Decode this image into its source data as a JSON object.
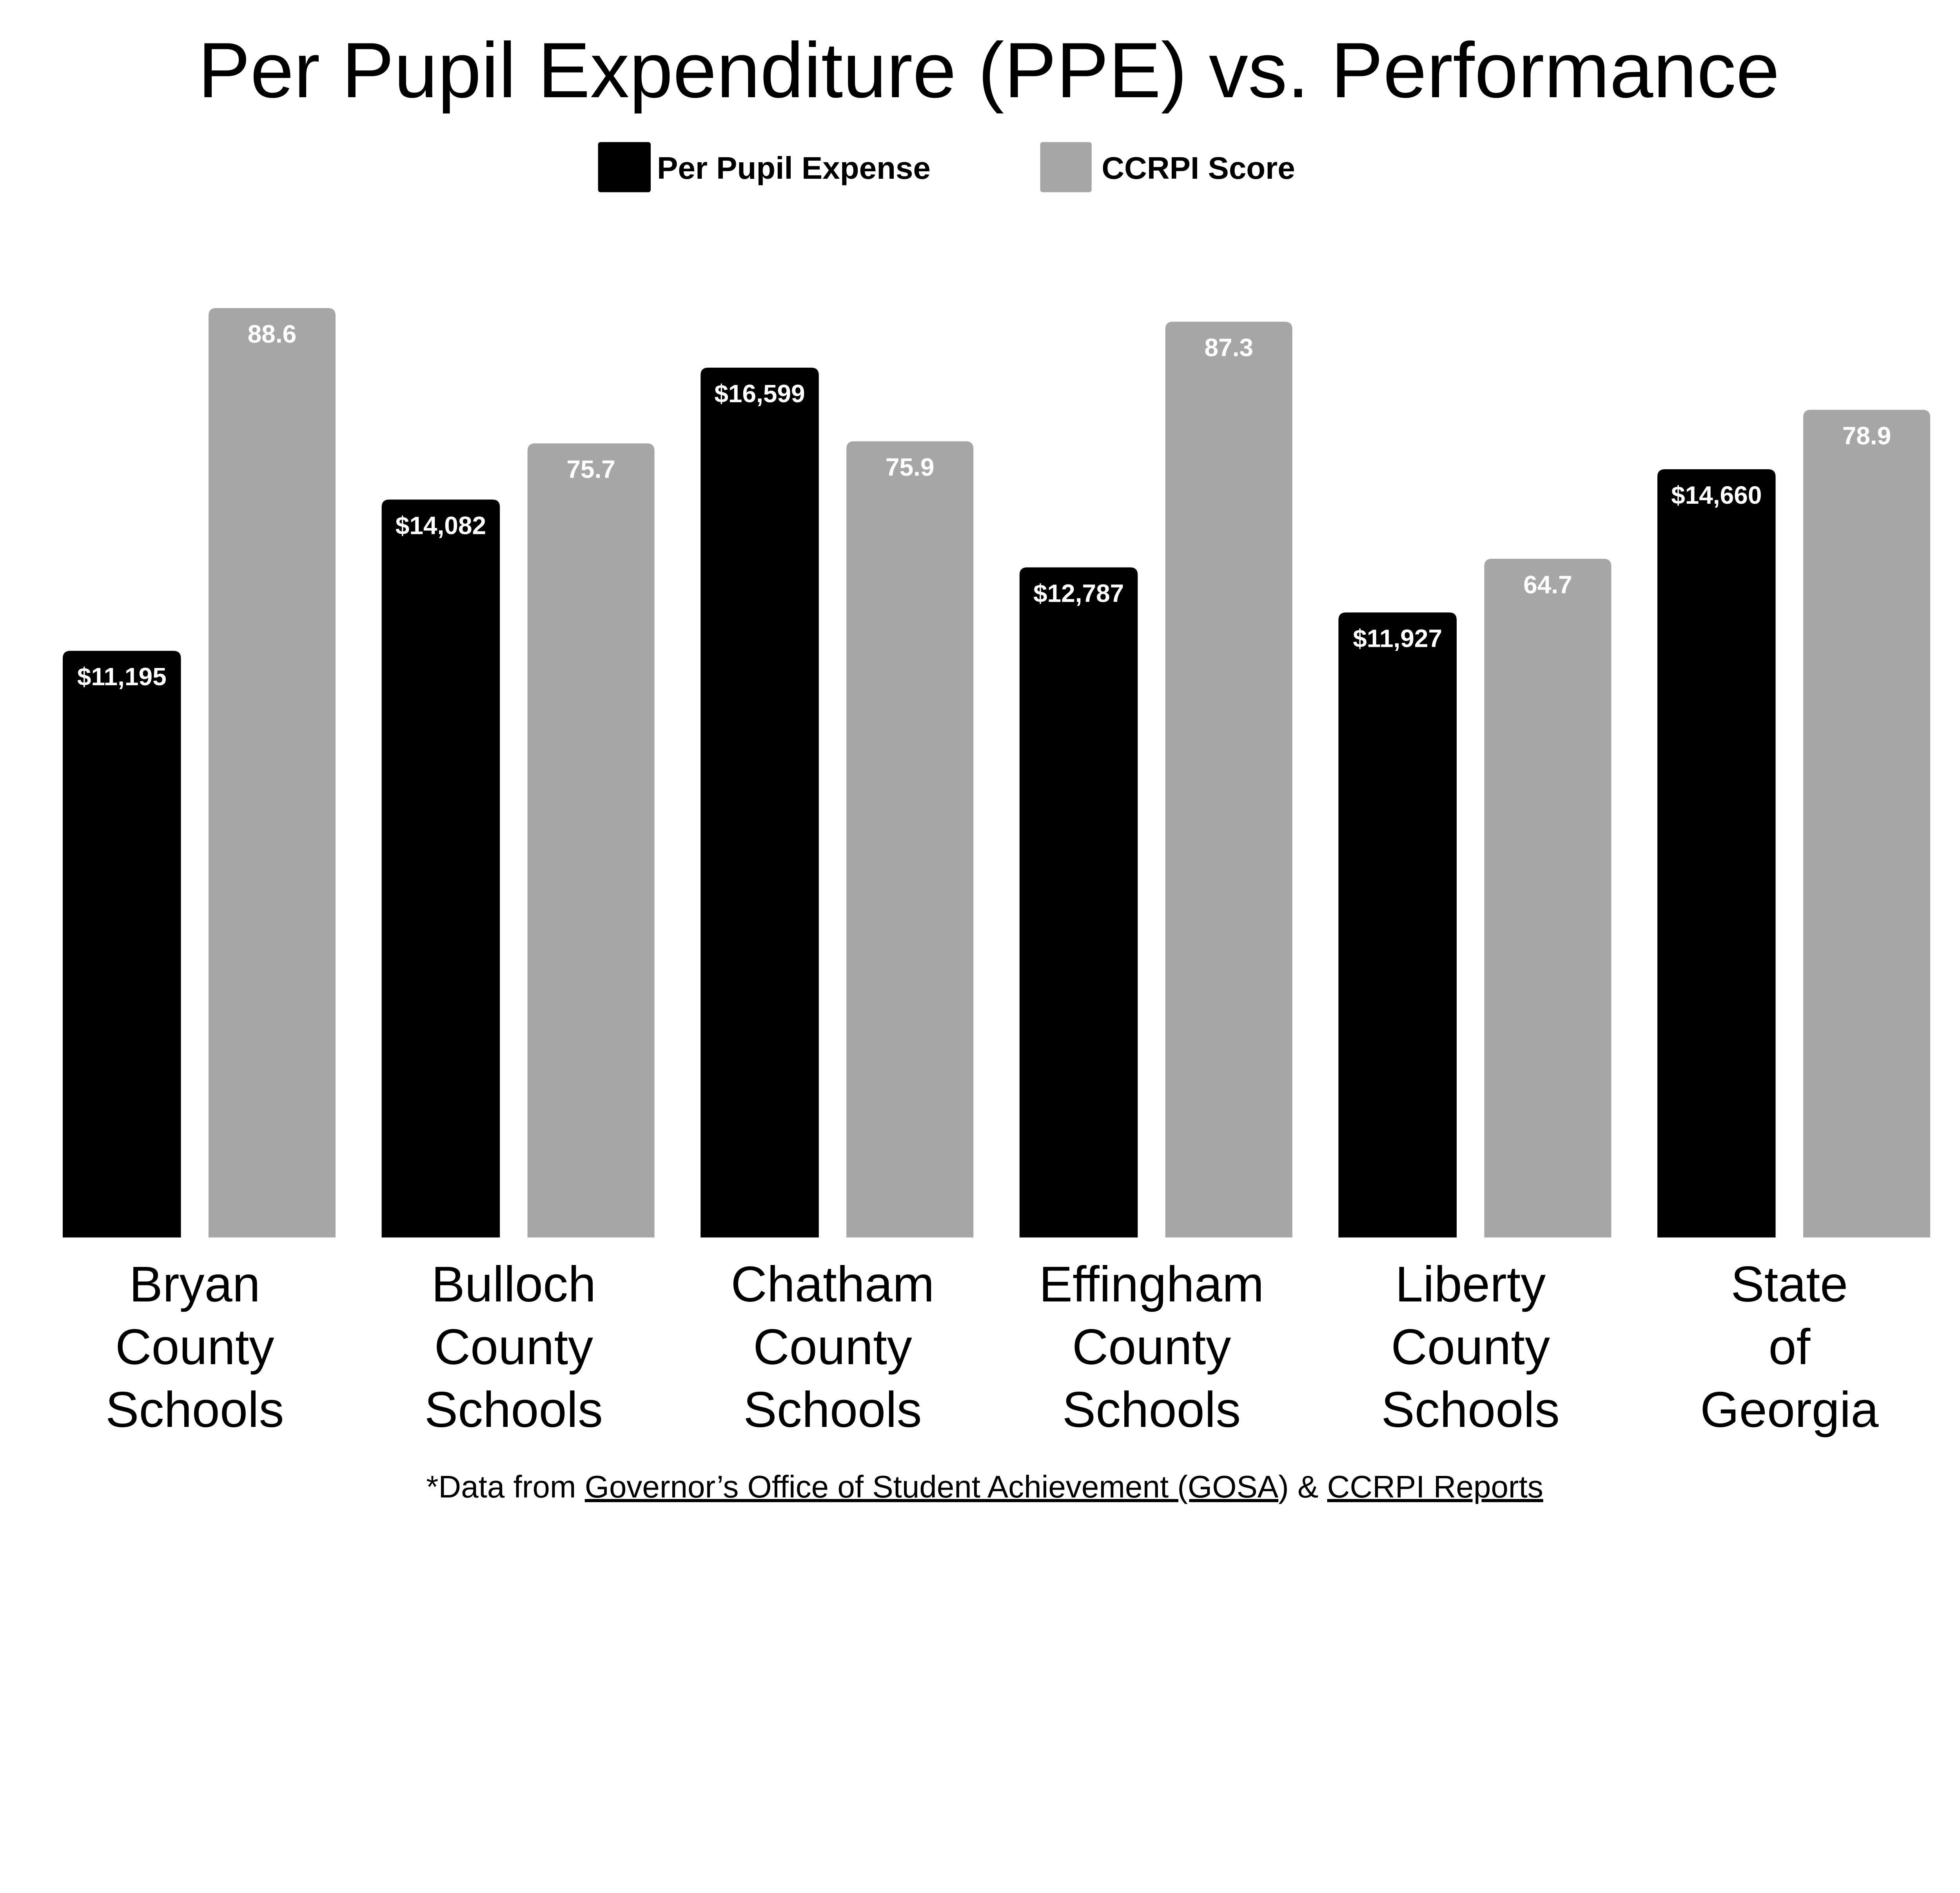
{
  "chart_data": {
    "type": "bar",
    "title": "Per Pupil Expenditure (PPE) vs. Performance",
    "categories": [
      [
        "Bryan",
        "County",
        "Schools"
      ],
      [
        "Bulloch",
        "County",
        "Schools"
      ],
      [
        "Chatham",
        "County",
        "Schools"
      ],
      [
        "Effingham",
        "County",
        "Schools"
      ],
      [
        "Liberty",
        "County",
        "Schools"
      ],
      [
        "State",
        "of",
        "Georgia"
      ]
    ],
    "series": [
      {
        "name": "Per Pupil Expense",
        "color": "#000000",
        "values": [
          11195,
          14082,
          16599,
          12787,
          11927,
          14660
        ],
        "labels": [
          "$11,195",
          "$14,082",
          "$16,599",
          "$12,787",
          "$11,927",
          "$14,660"
        ]
      },
      {
        "name": "CCRPI Score",
        "color": "#a6a6a6",
        "values": [
          88.6,
          75.7,
          75.9,
          87.3,
          64.7,
          78.9
        ],
        "labels": [
          "88.6",
          "75.7",
          "75.9",
          "87.3",
          "64.7",
          "78.9"
        ]
      }
    ],
    "legend_position": "top-center",
    "grid": false,
    "axes_shown": false,
    "xlabel": "",
    "ylabel": ""
  },
  "footnote": {
    "prefix": "*Data from ",
    "link1": "Governor’s Office of Student Achievement (GOSA",
    "mid1": ")",
    "mid2": " & ",
    "link2": "CCRPI Reports"
  }
}
